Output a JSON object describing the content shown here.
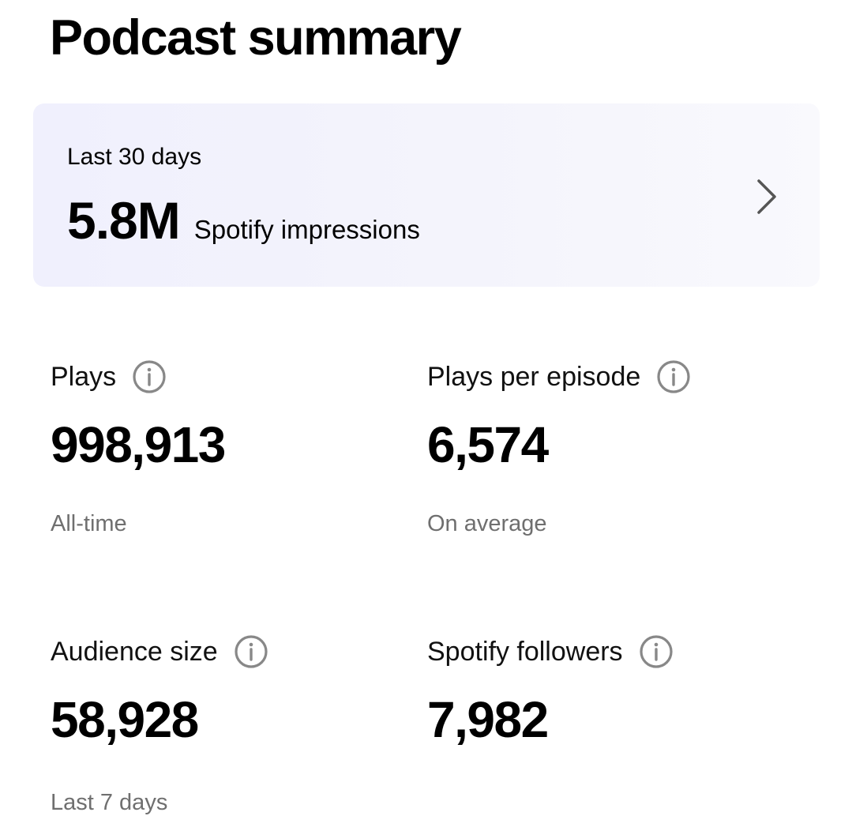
{
  "page": {
    "title": "Podcast summary"
  },
  "impressions_card": {
    "period": "Last 30 days",
    "value": "5.8M",
    "unit": "Spotify impressions",
    "chevron_icon": "chevron-right-icon"
  },
  "stats": {
    "plays": {
      "label": "Plays",
      "value": "998,913",
      "caption": "All-time",
      "icon": "info-icon"
    },
    "plays_per_episode": {
      "label": "Plays per episode",
      "value": "6,574",
      "caption": "On average",
      "icon": "info-icon"
    },
    "audience_size": {
      "label": "Audience size",
      "value": "58,928",
      "caption": "Last 7 days",
      "icon": "info-icon"
    },
    "spotify_followers": {
      "label": "Spotify followers",
      "value": "7,982",
      "icon": "info-icon"
    }
  },
  "colors": {
    "background": "#ffffff",
    "card_background": "#f2f2fd",
    "text_primary": "#000000",
    "text_secondary": "#6f6f6f",
    "icon_gray": "#888888"
  }
}
